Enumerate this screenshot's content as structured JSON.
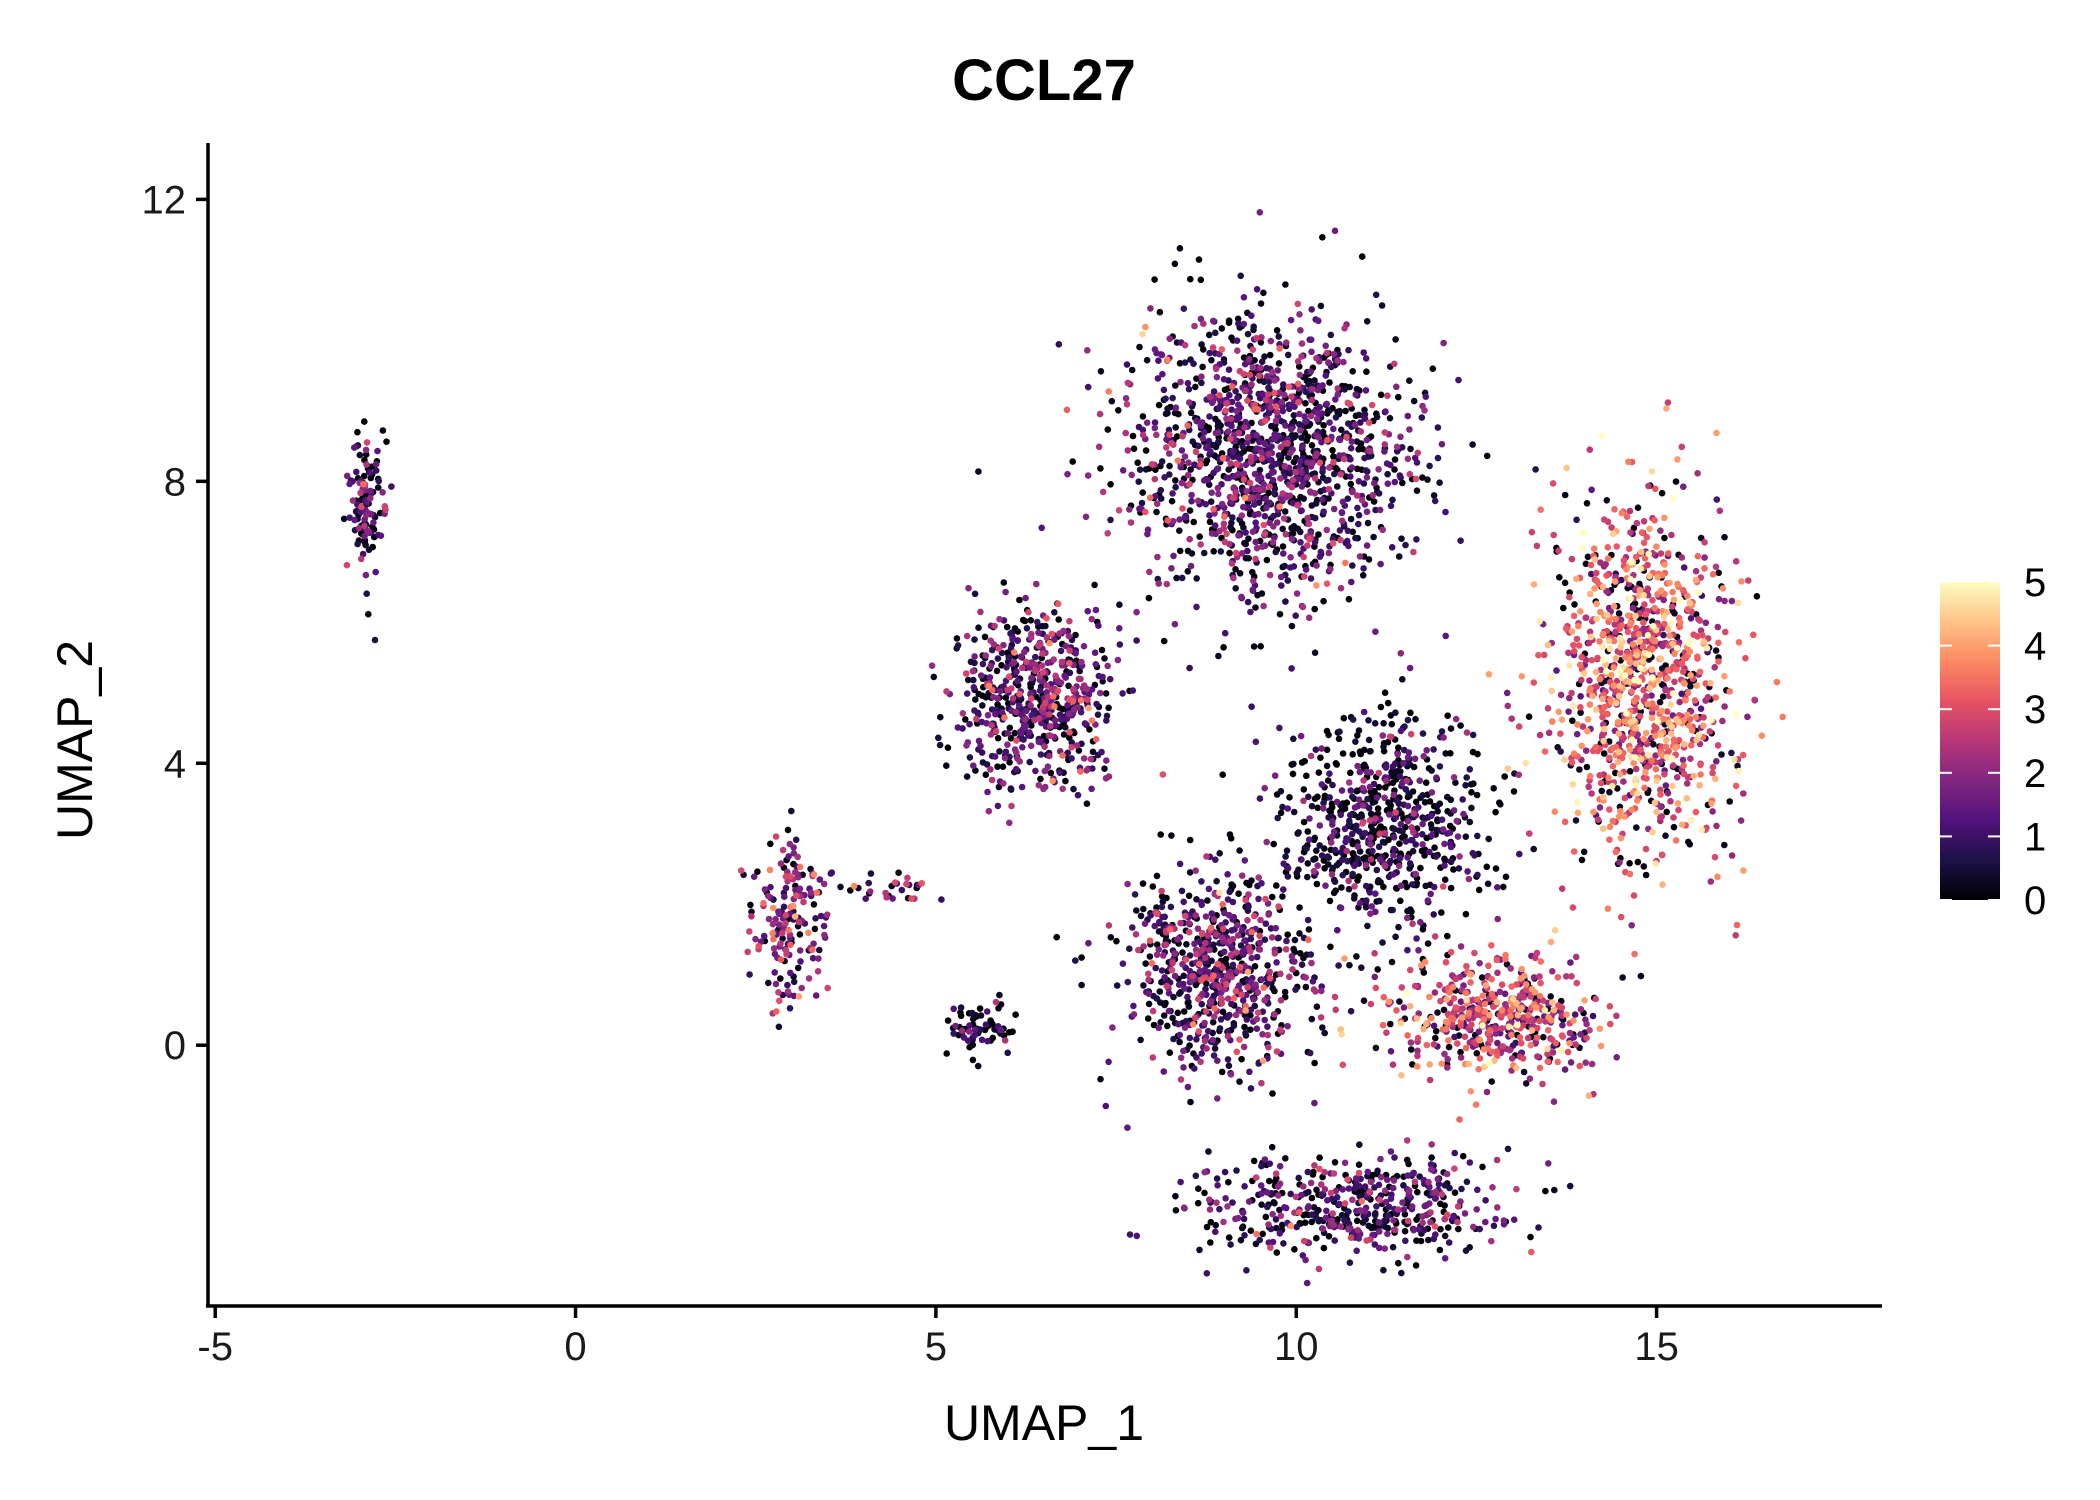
{
  "chart_data": {
    "type": "scatter",
    "title": "CCL27",
    "xlabel": "UMAP_1",
    "ylabel": "UMAP_2",
    "xlim": [
      -5.1,
      18.1
    ],
    "ylim": [
      -3.7,
      12.8
    ],
    "xticks": [
      -5,
      0,
      5,
      10,
      15
    ],
    "xtick_labels": [
      "-5",
      "0",
      "5",
      "10",
      "15"
    ],
    "yticks": [
      0,
      4,
      8,
      12
    ],
    "ytick_labels": [
      "0",
      "4",
      "8",
      "12"
    ],
    "grid": false,
    "color_scale": {
      "name": "magma",
      "min": 0,
      "max": 5,
      "ticks": [
        0,
        1,
        2,
        3,
        4,
        5
      ],
      "tick_labels": [
        "0",
        "1",
        "2",
        "3",
        "4",
        "5"
      ],
      "stops": [
        "#000004",
        "#1d1147",
        "#51127c",
        "#822681",
        "#b73779",
        "#e75263",
        "#fc8961",
        "#fec287",
        "#fcfdbf"
      ],
      "legend_position": "right"
    },
    "clusters": [
      {
        "name": "cluster-left-strand",
        "center": [
          -2.9,
          7.6
        ],
        "spread": [
          0.2,
          0.8
        ],
        "n": 120,
        "mean_expr": 1.1
      },
      {
        "name": "cluster-mid-left",
        "center": [
          3.0,
          1.8
        ],
        "spread": [
          0.45,
          0.9
        ],
        "n": 180,
        "mean_expr": 1.8
      },
      {
        "name": "cluster-mid-tail",
        "center": [
          4.4,
          2.2
        ],
        "spread": [
          0.6,
          0.2
        ],
        "n": 30,
        "mean_expr": 1.5
      },
      {
        "name": "cluster-small-black",
        "center": [
          5.6,
          0.2
        ],
        "spread": [
          0.35,
          0.35
        ],
        "n": 70,
        "mean_expr": 0.2
      },
      {
        "name": "cluster-main-left-lobe",
        "center": [
          6.4,
          4.9
        ],
        "spread": [
          0.9,
          1.0
        ],
        "n": 600,
        "mean_expr": 1.3
      },
      {
        "name": "cluster-main-upper",
        "center": [
          9.6,
          8.4
        ],
        "spread": [
          1.6,
          1.6
        ],
        "n": 1400,
        "mean_expr": 1.1
      },
      {
        "name": "cluster-main-center",
        "center": [
          11.2,
          3.1
        ],
        "spread": [
          1.2,
          1.3
        ],
        "n": 700,
        "mean_expr": 0.5
      },
      {
        "name": "cluster-main-right",
        "center": [
          14.8,
          5.2
        ],
        "spread": [
          1.0,
          2.0
        ],
        "n": 1100,
        "mean_expr": 3.1
      },
      {
        "name": "cluster-main-lower-left",
        "center": [
          8.9,
          1.0
        ],
        "spread": [
          1.0,
          1.2
        ],
        "n": 700,
        "mean_expr": 1.3
      },
      {
        "name": "cluster-main-lower-right",
        "center": [
          12.8,
          0.4
        ],
        "spread": [
          1.2,
          0.7
        ],
        "n": 500,
        "mean_expr": 2.7
      },
      {
        "name": "cluster-bottom",
        "center": [
          10.8,
          -2.3
        ],
        "spread": [
          1.8,
          0.6
        ],
        "n": 500,
        "mean_expr": 1.0
      }
    ]
  }
}
